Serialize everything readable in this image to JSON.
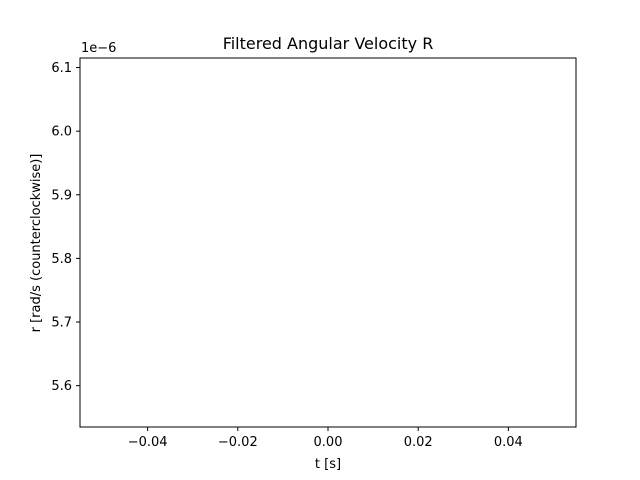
{
  "chart_data": {
    "type": "line",
    "title": "Filtered Angular Velocity R",
    "xlabel": "t [s]",
    "ylabel": "r [rad/s (counterclockwise)]",
    "y_offset_label": "1e−6",
    "xlim": [
      -0.055,
      0.055
    ],
    "ylim": [
      5.535,
      6.115
    ],
    "x_ticks": [
      -0.04,
      -0.02,
      0.0,
      0.02,
      0.04
    ],
    "x_tick_labels": [
      "−0.04",
      "−0.02",
      "0.00",
      "0.02",
      "0.04"
    ],
    "y_ticks": [
      5.6,
      5.7,
      5.8,
      5.9,
      6.0,
      6.1
    ],
    "y_tick_labels": [
      "5.6",
      "5.7",
      "5.8",
      "5.9",
      "6.0",
      "6.1"
    ],
    "y_scale": 1e-06,
    "grid": false,
    "series": [
      {
        "name": "r",
        "x": [],
        "y": []
      }
    ]
  }
}
